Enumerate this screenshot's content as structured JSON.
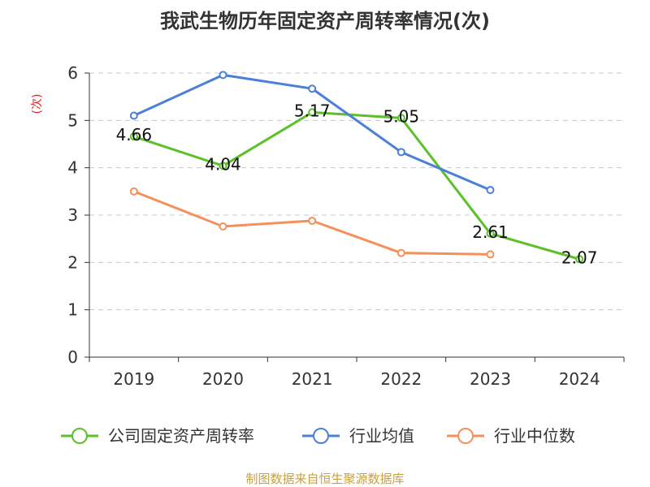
{
  "chart_data": {
    "type": "line",
    "title": "我武生物历年固定资产周转率情况(次)",
    "ylabel": "(次)",
    "categories": [
      "2019",
      "2020",
      "2021",
      "2022",
      "2023",
      "2024"
    ],
    "ylim": [
      0,
      6
    ],
    "yticks": [
      0,
      1,
      2,
      3,
      4,
      5,
      6
    ],
    "grid": true,
    "legend_position": "bottom",
    "series": [
      {
        "name": "公司固定资产周转率",
        "color": "#5ac12a",
        "values": [
          4.66,
          4.04,
          5.17,
          5.05,
          2.61,
          2.07
        ],
        "labels": [
          "4.66",
          "4.04",
          "5.17",
          "5.05",
          "2.61",
          "2.07"
        ]
      },
      {
        "name": "行业均值",
        "color": "#4b7fd8",
        "values": [
          5.1,
          5.96,
          5.67,
          4.33,
          3.53,
          null
        ]
      },
      {
        "name": "行业中位数",
        "color": "#f5905a",
        "values": [
          3.5,
          2.76,
          2.88,
          2.2,
          2.17,
          null
        ]
      }
    ]
  },
  "source_note": "制图数据来自恒生聚源数据库"
}
